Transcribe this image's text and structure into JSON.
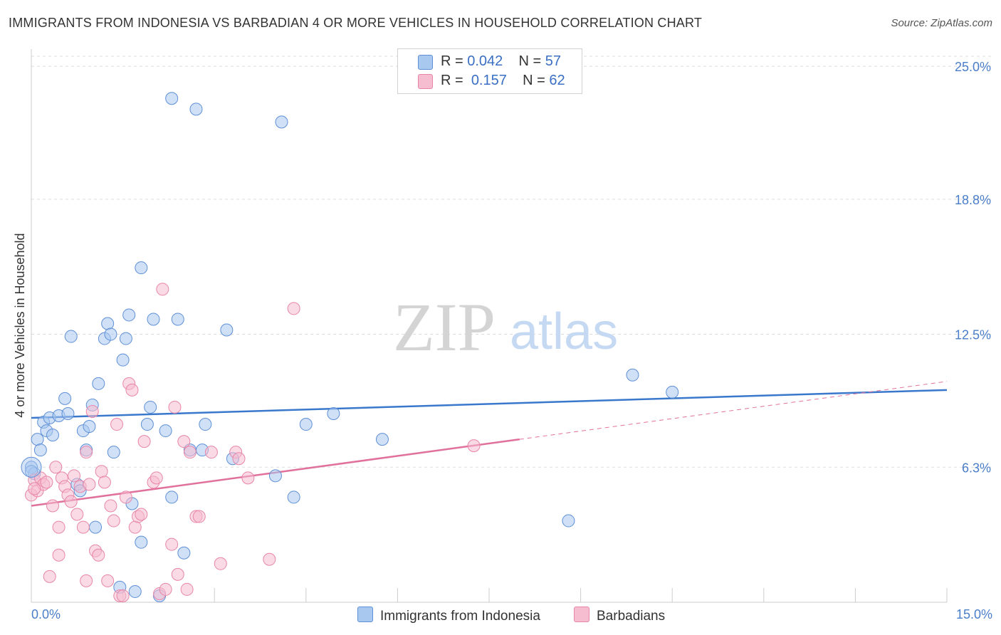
{
  "title": "IMMIGRANTS FROM INDONESIA VS BARBADIAN 4 OR MORE VEHICLES IN HOUSEHOLD CORRELATION CHART",
  "source": "Source: ZipAtlas.com",
  "watermark": {
    "zip": "ZIP",
    "atlas": "atlas"
  },
  "legend": {
    "rows": [
      {
        "r_label": "R =",
        "r_value": "0.042",
        "n_label": "N =",
        "n_value": "57",
        "color": "#a9c8f0"
      },
      {
        "r_label": "R =",
        "r_value": "0.157",
        "n_label": "N =",
        "n_value": "62",
        "color": "#f6bcd0"
      }
    ]
  },
  "colors": {
    "blue_fill": "#a9c8f0",
    "blue_stroke": "#5e8fd6",
    "blue_line": "#3a78cc",
    "pink_fill": "#f6bcd0",
    "pink_stroke": "#e886a8",
    "pink_line": "#e0719c",
    "grid": "#dddddd",
    "axis_label": "#4a7ec8"
  },
  "chart_data": {
    "type": "scatter",
    "title": "IMMIGRANTS FROM INDONESIA VS BARBADIAN 4 OR MORE VEHICLES IN HOUSEHOLD CORRELATION CHART",
    "xlabel": "",
    "ylabel": "4 or more Vehicles in Household",
    "xlim": [
      0,
      15
    ],
    "ylim": [
      0,
      25.8
    ],
    "x_tick_labels": [
      "0.0%",
      "15.0%"
    ],
    "y_ticks": [
      6.3,
      12.5,
      18.8,
      25.0
    ],
    "y_tick_labels": [
      "6.3%",
      "12.5%",
      "18.8%",
      "25.0%"
    ],
    "series": [
      {
        "name": "Immigrants from Indonesia",
        "r": 0.042,
        "n": 57,
        "trend": {
          "x0": 0.0,
          "y0": 8.6,
          "x1": 15.0,
          "y1": 9.9
        },
        "points": [
          [
            0.0,
            6.3
          ],
          [
            0.05,
            6.0
          ],
          [
            0.1,
            7.6
          ],
          [
            0.15,
            7.1
          ],
          [
            0.2,
            8.4
          ],
          [
            0.25,
            8.0
          ],
          [
            0.3,
            8.6
          ],
          [
            0.35,
            7.8
          ],
          [
            0.45,
            8.7
          ],
          [
            0.55,
            9.5
          ],
          [
            0.6,
            8.8
          ],
          [
            0.65,
            12.4
          ],
          [
            0.75,
            5.5
          ],
          [
            0.8,
            5.2
          ],
          [
            0.85,
            8.0
          ],
          [
            0.9,
            7.1
          ],
          [
            0.95,
            8.2
          ],
          [
            1.0,
            9.2
          ],
          [
            1.05,
            3.5
          ],
          [
            1.1,
            10.2
          ],
          [
            1.2,
            12.3
          ],
          [
            1.25,
            13.0
          ],
          [
            1.3,
            12.5
          ],
          [
            1.35,
            7.0
          ],
          [
            1.45,
            0.7
          ],
          [
            1.5,
            11.3
          ],
          [
            1.55,
            12.3
          ],
          [
            1.6,
            13.4
          ],
          [
            1.65,
            4.6
          ],
          [
            1.7,
            0.5
          ],
          [
            1.8,
            2.8
          ],
          [
            1.8,
            15.6
          ],
          [
            1.9,
            8.3
          ],
          [
            1.95,
            9.1
          ],
          [
            2.0,
            13.2
          ],
          [
            2.1,
            0.3
          ],
          [
            2.2,
            8.0
          ],
          [
            2.3,
            4.9
          ],
          [
            2.3,
            23.5
          ],
          [
            2.4,
            13.2
          ],
          [
            2.5,
            2.3
          ],
          [
            2.6,
            7.1
          ],
          [
            2.7,
            23.0
          ],
          [
            2.8,
            7.1
          ],
          [
            2.85,
            8.3
          ],
          [
            3.2,
            12.7
          ],
          [
            3.3,
            6.7
          ],
          [
            4.0,
            5.9
          ],
          [
            4.1,
            22.4
          ],
          [
            4.3,
            4.9
          ],
          [
            4.5,
            8.3
          ],
          [
            4.95,
            8.8
          ],
          [
            5.75,
            7.6
          ],
          [
            8.8,
            3.8
          ],
          [
            9.85,
            10.6
          ],
          [
            10.5,
            9.8
          ],
          [
            0.0,
            6.1
          ]
        ]
      },
      {
        "name": "Barbadians",
        "r": 0.157,
        "n": 62,
        "trend": {
          "x0": 0.0,
          "y0": 4.5,
          "x1": 8.0,
          "y1": 7.6
        },
        "trend_ext": {
          "x0": 8.0,
          "y0": 7.6,
          "x1": 15.0,
          "y1": 10.3
        },
        "points": [
          [
            0.0,
            5.0
          ],
          [
            0.05,
            5.7
          ],
          [
            0.1,
            5.2
          ],
          [
            0.15,
            5.8
          ],
          [
            0.2,
            5.5
          ],
          [
            0.25,
            5.6
          ],
          [
            0.3,
            1.2
          ],
          [
            0.35,
            4.5
          ],
          [
            0.4,
            6.3
          ],
          [
            0.45,
            3.5
          ],
          [
            0.45,
            2.2
          ],
          [
            0.5,
            5.8
          ],
          [
            0.55,
            5.4
          ],
          [
            0.6,
            5.0
          ],
          [
            0.65,
            4.7
          ],
          [
            0.7,
            5.9
          ],
          [
            0.75,
            4.1
          ],
          [
            0.8,
            5.4
          ],
          [
            0.85,
            3.5
          ],
          [
            0.9,
            7.0
          ],
          [
            0.9,
            1.0
          ],
          [
            0.95,
            5.5
          ],
          [
            1.0,
            8.9
          ],
          [
            1.05,
            2.4
          ],
          [
            1.1,
            2.2
          ],
          [
            1.15,
            6.1
          ],
          [
            1.2,
            5.6
          ],
          [
            1.25,
            1.0
          ],
          [
            1.3,
            4.5
          ],
          [
            1.35,
            3.8
          ],
          [
            1.4,
            8.3
          ],
          [
            1.45,
            0.3
          ],
          [
            1.5,
            0.3
          ],
          [
            1.55,
            4.9
          ],
          [
            1.6,
            10.2
          ],
          [
            1.65,
            9.9
          ],
          [
            1.7,
            3.5
          ],
          [
            1.75,
            4.0
          ],
          [
            1.8,
            4.1
          ],
          [
            1.85,
            7.5
          ],
          [
            2.0,
            5.6
          ],
          [
            2.05,
            5.8
          ],
          [
            2.1,
            0.4
          ],
          [
            2.15,
            14.6
          ],
          [
            2.2,
            0.6
          ],
          [
            2.3,
            2.7
          ],
          [
            2.35,
            9.1
          ],
          [
            2.4,
            1.3
          ],
          [
            2.5,
            7.5
          ],
          [
            2.55,
            0.6
          ],
          [
            2.6,
            7.0
          ],
          [
            2.7,
            4.0
          ],
          [
            2.75,
            4.0
          ],
          [
            2.95,
            7.0
          ],
          [
            3.1,
            1.8
          ],
          [
            3.35,
            7.0
          ],
          [
            3.4,
            6.7
          ],
          [
            3.55,
            5.8
          ],
          [
            3.9,
            2.0
          ],
          [
            4.3,
            13.7
          ],
          [
            7.25,
            7.3
          ],
          [
            0.05,
            5.3
          ]
        ]
      }
    ]
  },
  "bottom_legend": [
    {
      "label": "Immigrants from Indonesia",
      "color": "#a9c8f0"
    },
    {
      "label": "Barbadians",
      "color": "#f6bcd0"
    }
  ]
}
